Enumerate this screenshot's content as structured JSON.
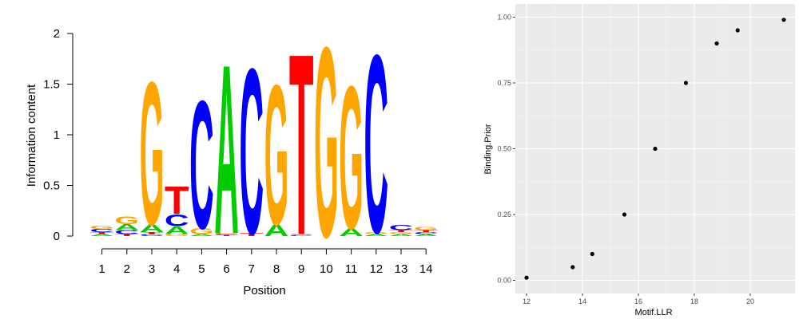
{
  "chart_data": [
    {
      "type": "sequence-logo",
      "title": "",
      "xlabel": "Position",
      "ylabel": "Information content",
      "ylim": [
        0,
        2
      ],
      "yticks": [
        "0",
        "0.5",
        "1",
        "1.5",
        "2"
      ],
      "xticks": [
        "1",
        "2",
        "3",
        "4",
        "5",
        "6",
        "7",
        "8",
        "9",
        "10",
        "11",
        "12",
        "13",
        "14"
      ],
      "colors": {
        "A": "#00cc00",
        "C": "#0000ff",
        "G": "#ffa500",
        "T": "#ff0000"
      },
      "positions": [
        {
          "pos": 1,
          "letters": [
            {
              "base": "A",
              "height": 0.02
            },
            {
              "base": "T",
              "height": 0.02
            },
            {
              "base": "C",
              "height": 0.03
            },
            {
              "base": "G",
              "height": 0.03
            }
          ]
        },
        {
          "pos": 2,
          "letters": [
            {
              "base": "T",
              "height": 0.02
            },
            {
              "base": "C",
              "height": 0.04
            },
            {
              "base": "A",
              "height": 0.06
            },
            {
              "base": "G",
              "height": 0.08
            }
          ]
        },
        {
          "pos": 3,
          "letters": [
            {
              "base": "C",
              "height": 0.02
            },
            {
              "base": "T",
              "height": 0.02
            },
            {
              "base": "A",
              "height": 0.08
            },
            {
              "base": "G",
              "height": 1.45
            }
          ]
        },
        {
          "pos": 4,
          "letters": [
            {
              "base": "G",
              "height": 0.02
            },
            {
              "base": "A",
              "height": 0.08
            },
            {
              "base": "C",
              "height": 0.12
            },
            {
              "base": "T",
              "height": 0.28
            }
          ]
        },
        {
          "pos": 5,
          "letters": [
            {
              "base": "A",
              "height": 0.02
            },
            {
              "base": "G",
              "height": 0.06
            },
            {
              "base": "C",
              "height": 1.3
            }
          ]
        },
        {
          "pos": 6,
          "letters": [
            {
              "base": "T",
              "height": 0.01
            },
            {
              "base": "C",
              "height": 0.01
            },
            {
              "base": "G",
              "height": 0.01
            },
            {
              "base": "A",
              "height": 1.72
            }
          ]
        },
        {
          "pos": 7,
          "letters": [
            {
              "base": "T",
              "height": 0.03
            },
            {
              "base": "C",
              "height": 1.68
            }
          ]
        },
        {
          "pos": 8,
          "letters": [
            {
              "base": "A",
              "height": 0.12
            },
            {
              "base": "G",
              "height": 1.42
            }
          ]
        },
        {
          "pos": 9,
          "letters": [
            {
              "base": "C",
              "height": 0.01
            },
            {
              "base": "G",
              "height": 0.01
            },
            {
              "base": "T",
              "height": 1.84
            }
          ]
        },
        {
          "pos": 10,
          "letters": [
            {
              "base": "G",
              "height": 1.93
            }
          ]
        },
        {
          "pos": 11,
          "letters": [
            {
              "base": "A",
              "height": 0.08
            },
            {
              "base": "G",
              "height": 1.45
            }
          ]
        },
        {
          "pos": 12,
          "letters": [
            {
              "base": "A",
              "height": 0.02
            },
            {
              "base": "G",
              "height": 0.02
            },
            {
              "base": "C",
              "height": 1.81
            }
          ]
        },
        {
          "pos": 13,
          "letters": [
            {
              "base": "A",
              "height": 0.02
            },
            {
              "base": "G",
              "height": 0.02
            },
            {
              "base": "T",
              "height": 0.02
            },
            {
              "base": "C",
              "height": 0.05
            }
          ]
        },
        {
          "pos": 14,
          "letters": [
            {
              "base": "A",
              "height": 0.02
            },
            {
              "base": "C",
              "height": 0.02
            },
            {
              "base": "T",
              "height": 0.02
            },
            {
              "base": "G",
              "height": 0.03
            }
          ]
        }
      ]
    },
    {
      "type": "scatter",
      "title": "",
      "xlabel": "Motif.LLR",
      "ylabel": "Binding.Prior",
      "xlim": [
        11.6,
        21.6
      ],
      "ylim": [
        -0.05,
        1.05
      ],
      "xticks": [
        12,
        14,
        16,
        18,
        20
      ],
      "xtick_labels": [
        "12",
        "14",
        "16",
        "18",
        "20"
      ],
      "yticks": [
        0,
        0.25,
        0.5,
        0.75,
        1
      ],
      "ytick_labels": [
        "0.00",
        "0.25",
        "0.50",
        "0.75",
        "1.00"
      ],
      "grid": true,
      "panel_color": "#ebebeb",
      "point_color": "#000000",
      "x": [
        12.0,
        13.65,
        14.35,
        15.5,
        16.6,
        17.7,
        18.8,
        19.55,
        21.2
      ],
      "y": [
        0.01,
        0.05,
        0.1,
        0.25,
        0.5,
        0.75,
        0.9,
        0.95,
        0.99
      ]
    }
  ]
}
